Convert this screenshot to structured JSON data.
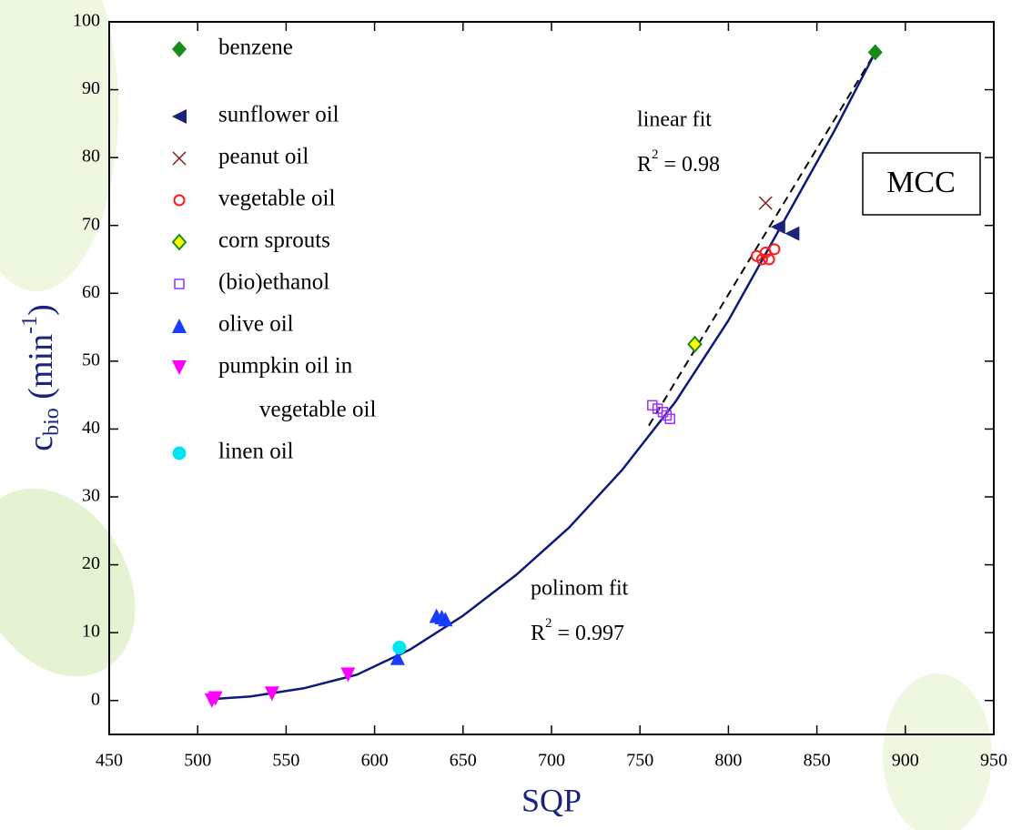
{
  "chart_data": {
    "type": "scatter",
    "xlabel": "SQP",
    "ylabel": {
      "base": "c",
      "sub": "bio",
      "mid": " (min",
      "sup": "-1",
      "end": ")"
    },
    "xlim": [
      450,
      950
    ],
    "xticks": [
      450,
      500,
      550,
      600,
      650,
      700,
      750,
      800,
      850,
      900,
      950
    ],
    "ylim": [
      -5,
      100
    ],
    "yticks": [
      0,
      10,
      20,
      30,
      40,
      50,
      60,
      70,
      80,
      90,
      100
    ],
    "box_label": "MCC",
    "annotations": [
      {
        "text": "linear fit",
        "r_base": "R",
        "r_sup": "2",
        "r_rest": " = 0.98"
      },
      {
        "text": "polinom fit",
        "r_base": "R",
        "r_sup": "2",
        "r_rest": " = 0.997"
      }
    ],
    "fits": [
      {
        "color": "#000000",
        "dash": true,
        "x": [
          755,
          883
        ],
        "values": [
          40.5,
          95.5
        ]
      },
      {
        "color": "#0d1a7a",
        "dash": false,
        "x": [
          508,
          530,
          560,
          590,
          620,
          650,
          680,
          710,
          740,
          770,
          800,
          830,
          860,
          883
        ],
        "values": [
          0.2,
          0.6,
          1.8,
          3.8,
          7.5,
          12.5,
          18.5,
          25.5,
          34,
          44,
          56,
          70,
          84,
          95.5
        ]
      }
    ],
    "series": [
      {
        "name": [
          "benzene"
        ],
        "marker": "diamond",
        "color": "#1a8a1a",
        "x": [
          883
        ],
        "values": [
          95.5
        ]
      },
      {
        "name": [
          "sunflower oil"
        ],
        "marker": "tri-left",
        "color": "#1a237e",
        "x": [
          828,
          836
        ],
        "values": [
          69.8,
          68.8
        ]
      },
      {
        "name": [
          "peanut oil"
        ],
        "marker": "cross",
        "color": "#8b1a1a",
        "x": [
          821
        ],
        "values": [
          73.3
        ]
      },
      {
        "name": [
          "vegetable oil"
        ],
        "marker": "open-circle",
        "color": "#ff1a1a",
        "x": [
          816,
          819,
          821,
          823,
          826
        ],
        "values": [
          65.5,
          65,
          66,
          65,
          66.5
        ]
      },
      {
        "name": [
          "corn sprouts"
        ],
        "marker": "diamond-yellow",
        "color": "#1a8a1a",
        "x": [
          781
        ],
        "values": [
          52.5
        ]
      },
      {
        "name": [
          "(bio)ethanol"
        ],
        "marker": "open-square",
        "color": "#9933ff",
        "x": [
          757,
          760,
          763,
          765,
          767
        ],
        "values": [
          43.5,
          43,
          42.5,
          42,
          41.5
        ]
      },
      {
        "name": [
          "olive oil"
        ],
        "marker": "tri-up",
        "color": "#1a3cff",
        "x": [
          613,
          635,
          638,
          640
        ],
        "values": [
          6.3,
          12.5,
          12.3,
          12
        ]
      },
      {
        "name": [
          "pumpkin oil in",
          "vegetable oil"
        ],
        "marker": "tri-down",
        "color": "#ff00ff",
        "x": [
          508,
          510,
          542,
          585
        ],
        "values": [
          0,
          0.3,
          1,
          3.8
        ]
      },
      {
        "name": [
          "linen oil"
        ],
        "marker": "circle",
        "color": "#00e5ee",
        "x": [
          614
        ],
        "values": [
          7.8
        ]
      }
    ]
  }
}
